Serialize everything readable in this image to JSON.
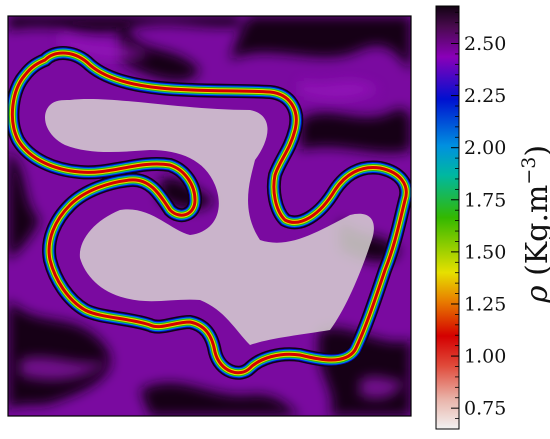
{
  "chart_data": {
    "type": "heatmap",
    "title": "",
    "xlabel": "",
    "ylabel": "",
    "colorbar": {
      "label": "ρ (Kg.m⁻³)",
      "label_parts": {
        "symbol": "ρ",
        "unit_open": " (Kg.m",
        "unit_exp": "−3",
        "unit_close": ")"
      },
      "vmin": 0.65,
      "vmax": 2.68,
      "ticks": [
        0.75,
        1.0,
        1.25,
        1.5,
        1.75,
        2.0,
        2.25,
        2.5
      ],
      "tick_labels": [
        "0.75",
        "1.00",
        "1.25",
        "1.50",
        "1.75",
        "2.00",
        "2.25",
        "2.50"
      ],
      "colormap": [
        "#f2f2f2",
        "#e06a55",
        "#d40000",
        "#e2e200",
        "#00b000",
        "#00a8e8",
        "#0000cc",
        "#8a00b8",
        "#160316"
      ]
    },
    "field_description_colors": {
      "light_fluid_core": "#dcdcdc",
      "light_fluid_edge": "#e30505",
      "heavy_fluid_light": "#7a0aa0",
      "heavy_fluid_dark": "#120316"
    },
    "grid": false,
    "legend": "none"
  }
}
